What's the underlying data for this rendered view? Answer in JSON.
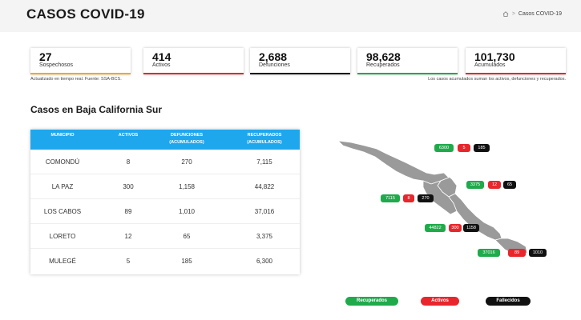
{
  "page_title": "CASOS COVID-19",
  "breadcrumb": {
    "home_icon": "home-icon",
    "current": "Casos COVID-19"
  },
  "stats": [
    {
      "value": "27",
      "label": "Sospechosos",
      "color": "#f5a623"
    },
    {
      "value": "414",
      "label": "Activos",
      "color": "#e8262b"
    },
    {
      "value": "2,688",
      "label": "Defunciones",
      "color": "#111111"
    },
    {
      "value": "98,628",
      "label": "Recuperados",
      "color": "#1faa4b"
    },
    {
      "value": "101,730",
      "label": "Acumulados",
      "color": "#e8262b"
    }
  ],
  "notes": {
    "left": "Actualizado en tiempo real. Fuente: SSA-BCS.",
    "right": "Los casos acumulados suman los activos, defunciones y recuperados."
  },
  "section_title": "Casos en Baja California Sur",
  "table": {
    "headers": [
      "MUNICIPIO",
      "ACTIVOS",
      "DEFUNCIONES",
      "(ACUMULADOS)",
      "RECUPERADOS",
      "(ACUMULADOS)"
    ],
    "rows": [
      [
        "COMONDÚ",
        "8",
        "270",
        "7,115"
      ],
      [
        "LA PAZ",
        "300",
        "1,158",
        "44,822"
      ],
      [
        "LOS CABOS",
        "89",
        "1,010",
        "37,016"
      ],
      [
        "LORETO",
        "12",
        "65",
        "3,375"
      ],
      [
        "MULEGÉ",
        "5",
        "185",
        "6,300"
      ]
    ]
  },
  "map_badges": {
    "mulege": {
      "recovered": "6300",
      "active": "5",
      "deaths": "185"
    },
    "loreto": {
      "recovered": "3375",
      "active": "12",
      "deaths": "65"
    },
    "comondu": {
      "recovered": "7115",
      "active": "8",
      "deaths": "270"
    },
    "lapaz": {
      "recovered": "44822",
      "active": "300",
      "deaths": "1158"
    },
    "loscabos": {
      "recovered": "37016",
      "active": "89",
      "deaths": "1010"
    }
  },
  "legend": {
    "recovered": "Recuperados",
    "active": "Activos",
    "deaths": "Fallecidos"
  },
  "colors": {
    "green": "#1faa4b",
    "red": "#e8262b",
    "black": "#111111",
    "map_fill": "#9a9a9a",
    "table_header": "#1fa7ee"
  }
}
